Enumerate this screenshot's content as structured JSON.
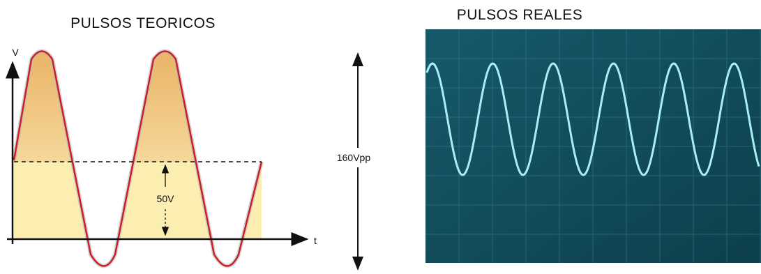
{
  "left_panel": {
    "title": "PULSOS TEORICOS",
    "y_axis_label": "V",
    "x_axis_label": "t",
    "amplitude_label": "50V"
  },
  "peak_to_peak_label": "160Vpp",
  "right_panel": {
    "title": "PULSOS REALES"
  }
}
